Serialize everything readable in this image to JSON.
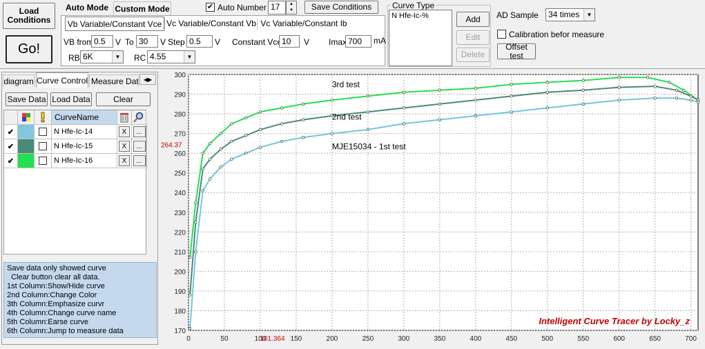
{
  "toolbar": {
    "load_label": "Load\nConditions",
    "go_label": "Go!",
    "mode_tabs": [
      "Auto Mode",
      "Custom Mode"
    ],
    "auto_number_label": "Auto Number",
    "auto_number_checked": true,
    "auto_number_value": "17",
    "save_conditions_label": "Save Conditions",
    "sub_tabs": [
      "Vb Variable/Constant Vce",
      "Vc Variable/Constant Vb",
      "Vc Variable/Constant Ib"
    ],
    "vb_from_label": "VB from",
    "vb_from_value": "0.5",
    "vb_from_unit": "V",
    "to_label": "To",
    "to_value": "30",
    "to_unit": "V",
    "step_label": "Step",
    "step_value": "0.5",
    "step_unit": "V",
    "const_vce_label": "Constant Vce",
    "const_vce_value": "10",
    "const_vce_unit": "V",
    "imax_label": "Imax",
    "imax_value": "700",
    "imax_unit": "mA",
    "rb_label": "RB",
    "rb_value": "6K",
    "rc_label": "RC",
    "rc_value": "4.55",
    "curve_type_label": "Curve Type",
    "curve_type_items": [
      "N Hfe-Ic-%"
    ],
    "add_label": "Add",
    "edit_label": "Edit",
    "delete_label": "Delete",
    "ad_sample_label": "AD Sample",
    "ad_sample_value": "34 times",
    "calibration_label": "Calibration befor measure",
    "calibration_checked": false,
    "offset_test_label": "Offset test"
  },
  "left": {
    "tabs": [
      "diagram",
      "Curve Control",
      "Measure Data"
    ],
    "save_data_label": "Save Data",
    "load_data_label": "Load Data",
    "clear_label": "Clear",
    "table_header_name": "CurveName",
    "rows": [
      {
        "show": true,
        "color": "#7fc8e0",
        "emph": false,
        "name": "N Hfe-Ic-14",
        "x": "X",
        "more": "..."
      },
      {
        "show": true,
        "color": "#4a8a78",
        "emph": false,
        "name": "N Hfe-Ic-15",
        "x": "X",
        "more": "..."
      },
      {
        "show": true,
        "color": "#22e050",
        "emph": false,
        "name": "N Hfe-Ic-16",
        "x": "X",
        "more": "..."
      }
    ],
    "help_lines": [
      "Save data only showed curve",
      "  Clear button clear all data.",
      "1st Column:Show/Hide curve",
      "2nd Column:Change Color",
      "3th Column:Emphasize curvr",
      "4th Column:Change curve name",
      "5th Column:Earse curve",
      "6th Column:Jump to measure data"
    ]
  },
  "chart_data": {
    "type": "line",
    "xlim": [
      0,
      710
    ],
    "ylim": [
      170,
      300
    ],
    "x_ticks": [
      0,
      50,
      100,
      150,
      200,
      250,
      300,
      350,
      400,
      450,
      500,
      550,
      600,
      650,
      700
    ],
    "y_ticks": [
      170,
      180,
      190,
      200,
      210,
      220,
      230,
      240,
      250,
      260,
      270,
      280,
      290,
      300
    ],
    "grid": true,
    "cursor": {
      "x_label": "101.364",
      "y_label": "264.37"
    },
    "watermark": "Intelligent Curve Tracer by Locky_z",
    "series": [
      {
        "name": "3rd test",
        "color": "#22e050",
        "x": [
          2,
          10,
          20,
          30,
          45,
          60,
          80,
          100,
          130,
          160,
          200,
          250,
          300,
          350,
          400,
          450,
          500,
          550,
          600,
          640,
          670,
          690,
          710
        ],
        "y": [
          207,
          235,
          260,
          265,
          270,
          275,
          278,
          281,
          283,
          285,
          287,
          289,
          291,
          292,
          293,
          295,
          296,
          297,
          298.5,
          298.5,
          296,
          292,
          287
        ]
      },
      {
        "name": "2nd test",
        "color": "#4a8a78",
        "x": [
          2,
          10,
          20,
          30,
          45,
          60,
          80,
          100,
          130,
          160,
          200,
          250,
          300,
          350,
          400,
          450,
          500,
          550,
          600,
          650,
          680,
          700,
          710
        ],
        "y": [
          188,
          225,
          252,
          257,
          262,
          266,
          269,
          272,
          275,
          277,
          279,
          281,
          283,
          285,
          287,
          289,
          291,
          292,
          293.5,
          294,
          292,
          289,
          287
        ]
      },
      {
        "name": "MJE15034 - 1st test",
        "color": "#6fc8dc",
        "x": [
          2,
          10,
          20,
          30,
          45,
          60,
          80,
          100,
          130,
          160,
          200,
          250,
          300,
          350,
          400,
          450,
          500,
          550,
          600,
          650,
          680,
          700,
          710
        ],
        "y": [
          171,
          210,
          241,
          247,
          253,
          257,
          260,
          263,
          266,
          268,
          270,
          272,
          275,
          277,
          279,
          281,
          283,
          285,
          287,
          288,
          288,
          287,
          286
        ]
      }
    ]
  }
}
